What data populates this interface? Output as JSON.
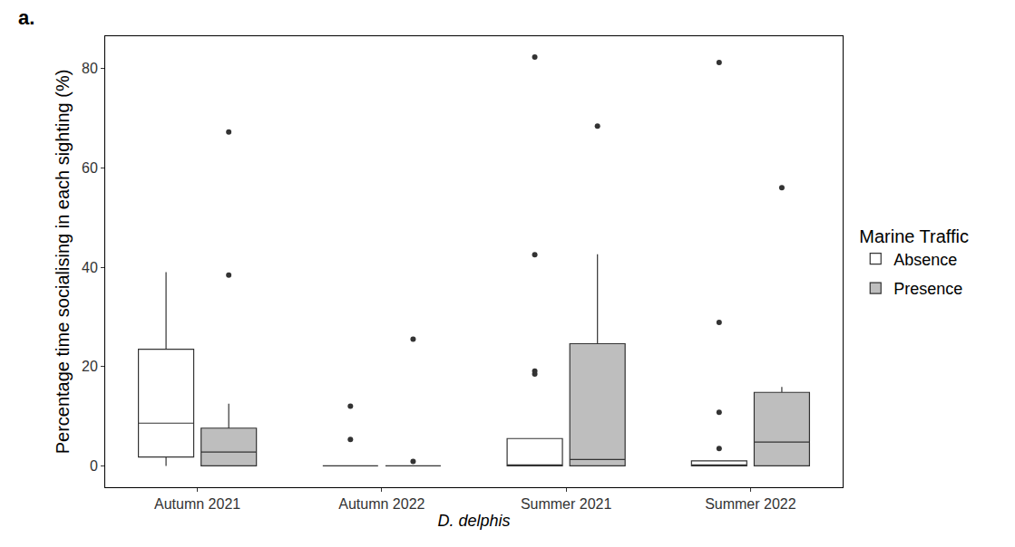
{
  "chart_data": {
    "type": "box",
    "panel_label": "a.",
    "x_label": "D. delphis",
    "y_label": "Percentage time socialising in each sighting (%)",
    "legend_title": "Marine Traffic",
    "legend": "right",
    "grid": false,
    "categories": [
      "Autumn 2021",
      "Autumn 2022",
      "Summer 2021",
      "Summer 2022"
    ],
    "ylim": [
      -4.3,
      86.5
    ],
    "yticks": [
      0,
      20,
      40,
      60,
      80
    ],
    "series": [
      {
        "name": "Absence",
        "color": "#ffffff",
        "lowerfence": [
          0,
          0,
          0,
          0
        ],
        "q1": [
          1.8,
          0,
          0,
          0
        ],
        "median": [
          8.6,
          0,
          0,
          0
        ],
        "q3": [
          23.5,
          0,
          5.5,
          1
        ],
        "upperfence": [
          39,
          0,
          5.5,
          1
        ],
        "outliers": [
          [],
          [
            5.3,
            12
          ],
          [
            18.5,
            19.1,
            42.5,
            82.3
          ],
          [
            3.5,
            10.8,
            28.9,
            81.2
          ]
        ]
      },
      {
        "name": "Presence",
        "color": "#bebebe",
        "lowerfence": [
          0,
          0,
          0,
          0
        ],
        "q1": [
          0,
          0,
          0,
          0
        ],
        "median": [
          2.8,
          0,
          1.3,
          4.8
        ],
        "q3": [
          7.6,
          0,
          24.6,
          14.8
        ],
        "upperfence": [
          12.5,
          0,
          42.6,
          15.9
        ],
        "outliers": [
          [
            38.4,
            67.2
          ],
          [
            0.9,
            25.5
          ],
          [
            68.4
          ],
          [
            56
          ]
        ]
      }
    ]
  }
}
